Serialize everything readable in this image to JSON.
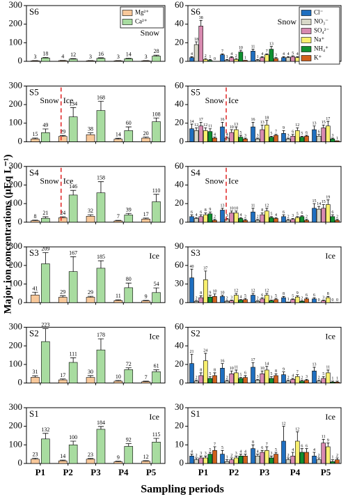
{
  "figure": {
    "ylabel": "Major ion concentrations (μEq L⁻¹)",
    "xlabel": "Sampling periods"
  },
  "chart_data": [
    {
      "type": "bar",
      "panel": "S6",
      "annotations": [
        "Snow"
      ],
      "legend": "upper right",
      "ylim": [
        0,
        300
      ],
      "yticks": [
        0,
        100,
        200,
        300
      ],
      "series": [
        {
          "name": "Mg²⁺",
          "color": "#f8c89a",
          "values": [
            3,
            4,
            3,
            3,
            3
          ],
          "errors": [
            1,
            1,
            1,
            1,
            1
          ]
        },
        {
          "name": "Ca²⁺",
          "color": "#a8dca0",
          "values": [
            18,
            12,
            16,
            14,
            28
          ],
          "errors": [
            3,
            3,
            3,
            3,
            5
          ]
        }
      ]
    },
    {
      "type": "bar",
      "panel": "S6",
      "annotations": [
        "Snow"
      ],
      "legend": "upper right",
      "ylim": [
        0,
        60
      ],
      "yticks": [
        0,
        20,
        40,
        60
      ],
      "series": [
        {
          "name": "Cl⁻",
          "color": "#1f6fc0",
          "values": [
            4,
            7,
            11,
            4,
            4
          ],
          "errors": [
            1,
            1,
            2,
            1,
            1
          ]
        },
        {
          "name": "NO₃⁻",
          "color": "#d8d8c8",
          "values": [
            18,
            1,
            1,
            4,
            2
          ],
          "errors": [
            3,
            1,
            1,
            1,
            1
          ]
        },
        {
          "name": "SO₄²⁻",
          "color": "#d88ab0",
          "values": [
            38,
            4,
            4,
            5,
            5
          ],
          "errors": [
            6,
            1,
            1,
            1,
            1
          ]
        },
        {
          "name": "Na⁺",
          "color": "#f8f070",
          "values": [
            2,
            2,
            7,
            4,
            4
          ],
          "errors": [
            1,
            1,
            1,
            1,
            1
          ]
        },
        {
          "name": "NH₄⁺",
          "color": "#109030",
          "values": [
            1,
            10,
            13,
            2,
            15
          ],
          "errors": [
            1,
            2,
            3,
            1,
            6
          ]
        },
        {
          "name": "K⁺",
          "color": "#d0601c",
          "values": [
            0,
            1,
            3,
            2,
            0
          ],
          "errors": [
            0,
            0,
            1,
            0,
            0
          ]
        }
      ]
    },
    {
      "type": "bar",
      "panel": "S5",
      "annotations": [
        "Snow",
        "Ice"
      ],
      "divider": true,
      "ylim": [
        0,
        300
      ],
      "yticks": [
        0,
        100,
        200,
        300
      ],
      "series": [
        {
          "color": "#f8c89a",
          "values": [
            15,
            29,
            38,
            14,
            20
          ],
          "errors": [
            5,
            5,
            10,
            5,
            5
          ]
        },
        {
          "color": "#a8dca0",
          "values": [
            49,
            134,
            168,
            60,
            108
          ],
          "errors": [
            20,
            50,
            50,
            20,
            20
          ]
        }
      ]
    },
    {
      "type": "bar",
      "panel": "S5",
      "annotations": [
        "Snow",
        "Ice"
      ],
      "divider": true,
      "ylim": [
        0,
        60
      ],
      "yticks": [
        0,
        20,
        40,
        60
      ],
      "series": [
        {
          "color": "#1f6fc0",
          "values": [
            14,
            16,
            16,
            9,
            13
          ],
          "errors": [
            5,
            5,
            5,
            3,
            4
          ]
        },
        {
          "color": "#d8d8c8",
          "values": [
            12,
            4,
            3,
            3,
            6
          ],
          "errors": [
            3,
            1,
            1,
            1,
            2
          ]
        },
        {
          "color": "#d88ab0",
          "values": [
            17,
            10,
            13,
            6,
            15
          ],
          "errors": [
            4,
            3,
            5,
            2,
            3
          ]
        },
        {
          "color": "#f8f070",
          "values": [
            12,
            13,
            18,
            12,
            17
          ],
          "errors": [
            3,
            3,
            5,
            3,
            5
          ]
        },
        {
          "color": "#109030",
          "values": [
            11,
            5,
            5,
            5,
            3
          ],
          "errors": [
            3,
            2,
            1,
            1,
            1
          ]
        },
        {
          "color": "#d0601c",
          "values": [
            4,
            3,
            7,
            6,
            1
          ],
          "errors": [
            1,
            1,
            1,
            1,
            0
          ]
        }
      ]
    },
    {
      "type": "bar",
      "panel": "S4",
      "annotations": [
        "Snow",
        "Ice"
      ],
      "divider": true,
      "ylim": [
        0,
        300
      ],
      "yticks": [
        0,
        100,
        200,
        300
      ],
      "series": [
        {
          "color": "#f8c89a",
          "values": [
            8,
            24,
            32,
            7,
            17
          ],
          "errors": [
            3,
            5,
            8,
            3,
            5
          ]
        },
        {
          "color": "#a8dca0",
          "values": [
            21,
            146,
            158,
            39,
            110
          ],
          "errors": [
            8,
            25,
            60,
            8,
            40
          ]
        }
      ]
    },
    {
      "type": "bar",
      "panel": "S4",
      "annotations": [
        "Snow",
        "Ice"
      ],
      "divider": true,
      "ylim": [
        0,
        60
      ],
      "yticks": [
        0,
        20,
        40,
        60
      ],
      "series": [
        {
          "color": "#1f6fc0",
          "values": [
            6,
            13,
            11,
            6,
            15
          ],
          "errors": [
            2,
            2,
            4,
            2,
            5
          ]
        },
        {
          "color": "#d8d8c8",
          "values": [
            4,
            3,
            2,
            2,
            14
          ],
          "errors": [
            1,
            1,
            1,
            1,
            3
          ]
        },
        {
          "color": "#d88ab0",
          "values": [
            6,
            10,
            8,
            3,
            15
          ],
          "errors": [
            2,
            2,
            2,
            1,
            4
          ]
        },
        {
          "color": "#f8f070",
          "values": [
            8,
            10,
            12,
            5,
            19
          ],
          "errors": [
            2,
            2,
            3,
            1,
            5
          ]
        },
        {
          "color": "#109030",
          "values": [
            9,
            4,
            5,
            6,
            6
          ],
          "errors": [
            2,
            1,
            1,
            1,
            2
          ]
        },
        {
          "color": "#d0601c",
          "values": [
            2,
            2,
            4,
            2,
            2
          ],
          "errors": [
            1,
            1,
            1,
            1,
            1
          ]
        }
      ]
    },
    {
      "type": "bar",
      "panel": "S3",
      "annotations": [
        "Ice"
      ],
      "ylim": [
        0,
        300
      ],
      "yticks": [
        0,
        100,
        200,
        300
      ],
      "series": [
        {
          "color": "#f8c89a",
          "values": [
            41,
            29,
            29,
            11,
            9
          ],
          "errors": [
            15,
            8,
            5,
            4,
            3
          ]
        },
        {
          "color": "#a8dca0",
          "values": [
            209,
            167,
            185,
            80,
            54
          ],
          "errors": [
            60,
            80,
            40,
            25,
            25
          ]
        }
      ]
    },
    {
      "type": "bar",
      "panel": "S3",
      "annotations": [
        "Ice"
      ],
      "ylim": [
        0,
        90
      ],
      "yticks": [
        0,
        30,
        60,
        90
      ],
      "series": [
        {
          "color": "#1f6fc0",
          "values": [
            40,
            10,
            12,
            8,
            6
          ],
          "errors": [
            14,
            2,
            3,
            2,
            2
          ]
        },
        {
          "color": "#d8d8c8",
          "values": [
            2,
            2,
            2,
            1,
            0
          ],
          "errors": [
            1,
            1,
            1,
            0,
            0
          ]
        },
        {
          "color": "#d88ab0",
          "values": [
            8,
            3,
            6,
            5,
            3
          ],
          "errors": [
            3,
            1,
            2,
            1,
            1
          ]
        },
        {
          "color": "#f8f070",
          "values": [
            37,
            12,
            12,
            9,
            8
          ],
          "errors": [
            14,
            3,
            3,
            2,
            2
          ]
        },
        {
          "color": "#109030",
          "values": [
            9,
            4,
            3,
            2,
            0
          ],
          "errors": [
            3,
            1,
            1,
            1,
            0
          ]
        },
        {
          "color": "#d0601c",
          "values": [
            10,
            5,
            5,
            6,
            0
          ],
          "errors": [
            4,
            2,
            2,
            2,
            0
          ]
        }
      ]
    },
    {
      "type": "bar",
      "panel": "S2",
      "annotations": [
        "Ice"
      ],
      "ylim": [
        0,
        300
      ],
      "yticks": [
        0,
        100,
        200,
        300
      ],
      "series": [
        {
          "color": "#f8c89a",
          "values": [
            31,
            17,
            30,
            10,
            7
          ],
          "errors": [
            8,
            5,
            10,
            4,
            3
          ]
        },
        {
          "color": "#a8dca0",
          "values": [
            223,
            111,
            178,
            72,
            61
          ],
          "errors": [
            70,
            25,
            60,
            10,
            10
          ]
        }
      ]
    },
    {
      "type": "bar",
      "panel": "S2",
      "annotations": [
        "Ice"
      ],
      "ylim": [
        0,
        60
      ],
      "yticks": [
        0,
        20,
        40,
        60
      ],
      "series": [
        {
          "color": "#1f6fc0",
          "values": [
            21,
            16,
            17,
            9,
            13
          ],
          "errors": [
            10,
            5,
            5,
            3,
            4
          ]
        },
        {
          "color": "#d8d8c8",
          "values": [
            2,
            2,
            3,
            2,
            2
          ],
          "errors": [
            1,
            1,
            1,
            1,
            1
          ]
        },
        {
          "color": "#d88ab0",
          "values": [
            8,
            10,
            10,
            4,
            5
          ],
          "errors": [
            3,
            3,
            3,
            1,
            2
          ]
        },
        {
          "color": "#f8f070",
          "values": [
            24,
            11,
            14,
            7,
            11
          ],
          "errors": [
            8,
            3,
            4,
            2,
            3
          ]
        },
        {
          "color": "#109030",
          "values": [
            5,
            5,
            5,
            2,
            1
          ],
          "errors": [
            2,
            1,
            2,
            1,
            1
          ]
        },
        {
          "color": "#d0601c",
          "values": [
            8,
            6,
            8,
            3,
            1
          ],
          "errors": [
            3,
            2,
            2,
            1,
            1
          ]
        }
      ]
    },
    {
      "type": "bar",
      "panel": "S1",
      "annotations": [
        "Ice"
      ],
      "ylim": [
        0,
        300
      ],
      "yticks": [
        0,
        100,
        200,
        300
      ],
      "categories": [
        "P1",
        "P2",
        "P3",
        "P4",
        "P5"
      ],
      "series": [
        {
          "color": "#f8c89a",
          "values": [
            23,
            14,
            23,
            9,
            12
          ],
          "errors": [
            5,
            4,
            4,
            3,
            3
          ]
        },
        {
          "color": "#a8dca0",
          "values": [
            132,
            100,
            184,
            92,
            115
          ],
          "errors": [
            30,
            20,
            15,
            15,
            20
          ]
        }
      ]
    },
    {
      "type": "bar",
      "panel": "S1",
      "annotations": [
        "Ice"
      ],
      "ylim": [
        0,
        30
      ],
      "yticks": [
        0,
        10,
        20,
        30
      ],
      "categories": [
        "P1",
        "P2",
        "P3",
        "P4",
        "P5"
      ],
      "series": [
        {
          "color": "#1f6fc0",
          "values": [
            4,
            5,
            8,
            12,
            4
          ],
          "errors": [
            1,
            2,
            2,
            8,
            2
          ]
        },
        {
          "color": "#d8d8c8",
          "values": [
            2,
            1,
            4,
            2,
            2
          ],
          "errors": [
            1,
            1,
            1,
            1,
            1
          ]
        },
        {
          "color": "#d88ab0",
          "values": [
            3,
            2,
            6,
            4,
            11
          ],
          "errors": [
            1,
            1,
            1,
            2,
            2
          ]
        },
        {
          "color": "#f8f070",
          "values": [
            3,
            3,
            7,
            12,
            9
          ],
          "errors": [
            1,
            1,
            2,
            5,
            2
          ]
        },
        {
          "color": "#109030",
          "values": [
            5,
            4,
            3,
            6,
            1
          ],
          "errors": [
            1,
            1,
            1,
            2,
            1
          ]
        },
        {
          "color": "#d0601c",
          "values": [
            7,
            4,
            5,
            6,
            2
          ],
          "errors": [
            2,
            1,
            1,
            2,
            1
          ]
        }
      ]
    }
  ]
}
